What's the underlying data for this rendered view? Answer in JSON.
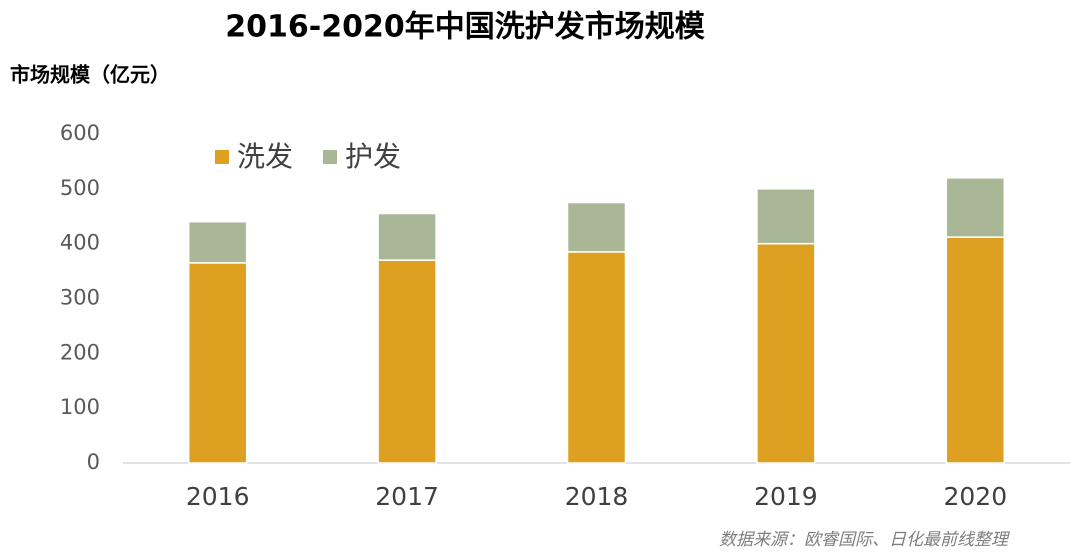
{
  "chart_data": {
    "type": "stacked_bar",
    "title": "2016-2020年中国洗护发市场规模",
    "y_label": "市场规模（亿元）",
    "categories": [
      "2016",
      "2017",
      "2018",
      "2019",
      "2020"
    ],
    "series": [
      {
        "name": "洗发",
        "color": "#dea020",
        "values": [
          365,
          370,
          385,
          400,
          412
        ]
      },
      {
        "name": "护发",
        "color": "#a9b796",
        "values": [
          75,
          85,
          90,
          100,
          108
        ]
      }
    ],
    "ylim": [
      0,
      600
    ],
    "yticks": [
      0,
      100,
      200,
      300,
      400,
      500,
      600
    ],
    "grid": false,
    "legend": "top-left",
    "source": "数据来源：欧睿国际、日化最前线整理"
  }
}
